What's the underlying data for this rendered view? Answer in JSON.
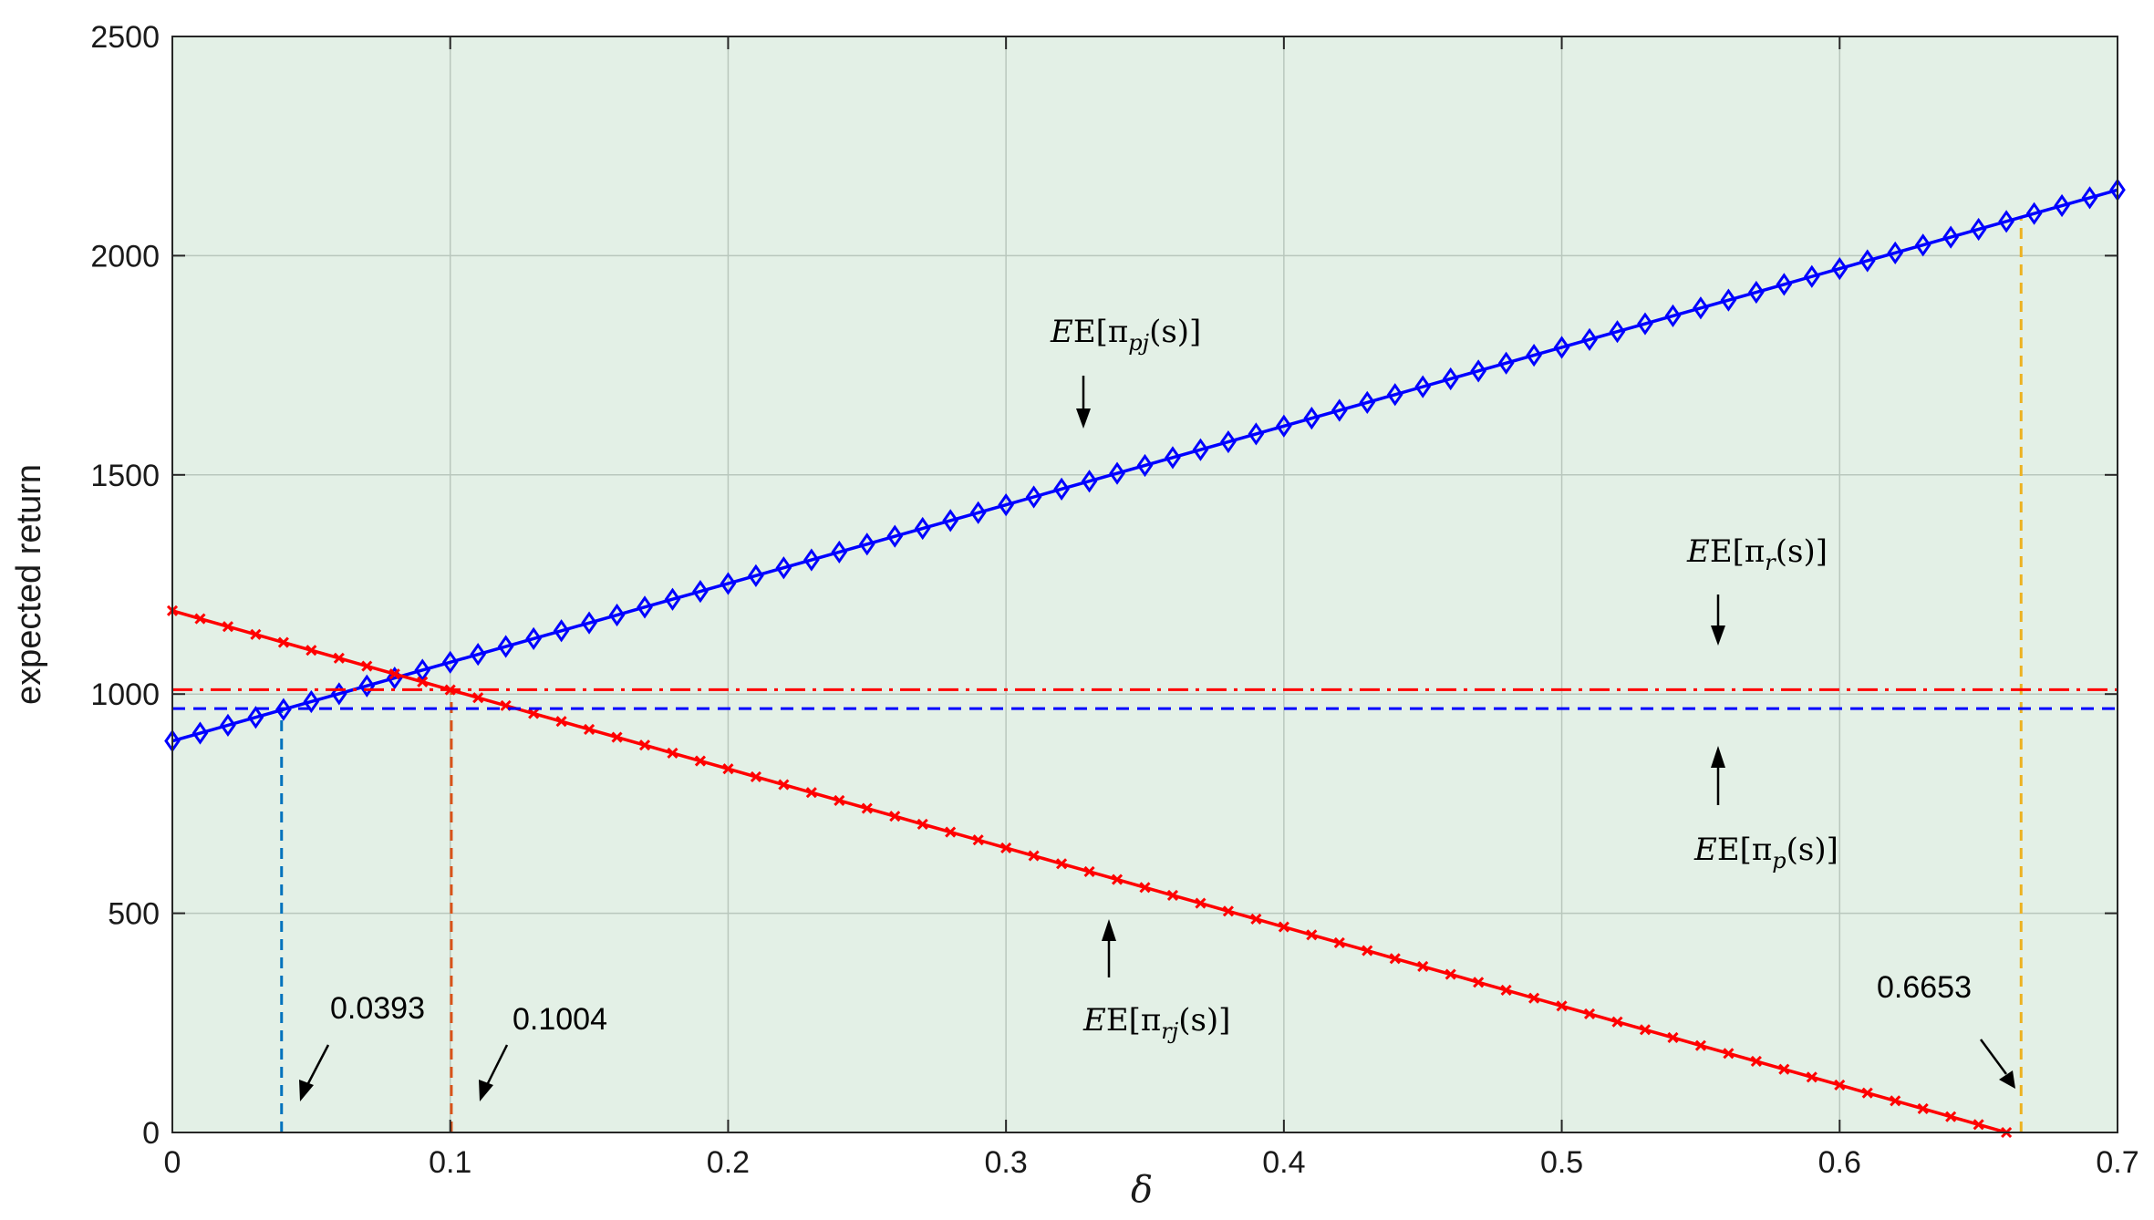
{
  "chart_data": {
    "type": "line",
    "xlabel": "δ",
    "ylabel": "expected return",
    "xlim": [
      0,
      0.7
    ],
    "ylim": [
      0,
      2500
    ],
    "xticks": [
      "0",
      "0.1",
      "0.2",
      "0.3",
      "0.4",
      "0.5",
      "0.6",
      "0.7"
    ],
    "yticks": [
      "0",
      "500",
      "1000",
      "1500",
      "2000",
      "2500"
    ],
    "grid": true,
    "background_color": "#e3f0e6",
    "series": [
      {
        "key": "pj",
        "label": {
          "base": "E[π",
          "sub": "pj",
          "tail": "(s)]"
        },
        "style": "solid-diamond",
        "color": "#0000ff",
        "x_start": 0,
        "x_end": 0.7,
        "x_step": 0.01,
        "y_start": 893,
        "y_end": 2150
      },
      {
        "key": "rj",
        "label": {
          "base": "E[π",
          "sub": "rj",
          "tail": "(s)]"
        },
        "style": "solid-x",
        "color": "#ff0000",
        "x_start": 0,
        "x_end": 0.66,
        "x_step": 0.01,
        "y_start": 1190,
        "y_end": 0
      },
      {
        "key": "r",
        "label": {
          "base": "E[π",
          "sub": "r",
          "tail": "(s)]"
        },
        "style": "dashdot",
        "color": "#ff0000",
        "value": 1010
      },
      {
        "key": "p",
        "label": {
          "base": "E[π",
          "sub": "p",
          "tail": "(s)]"
        },
        "style": "dashed",
        "color": "#0000ff",
        "value": 967
      }
    ],
    "markers": [
      {
        "x": 0.0393,
        "label": "0.0393",
        "color": "#0072bd",
        "y_top": 967
      },
      {
        "x": 0.1004,
        "label": "0.1004",
        "color": "#d95319",
        "y_top": 1010
      },
      {
        "x": 0.6653,
        "label": "0.6653",
        "color": "#edb120",
        "y_top": 2090
      }
    ]
  }
}
